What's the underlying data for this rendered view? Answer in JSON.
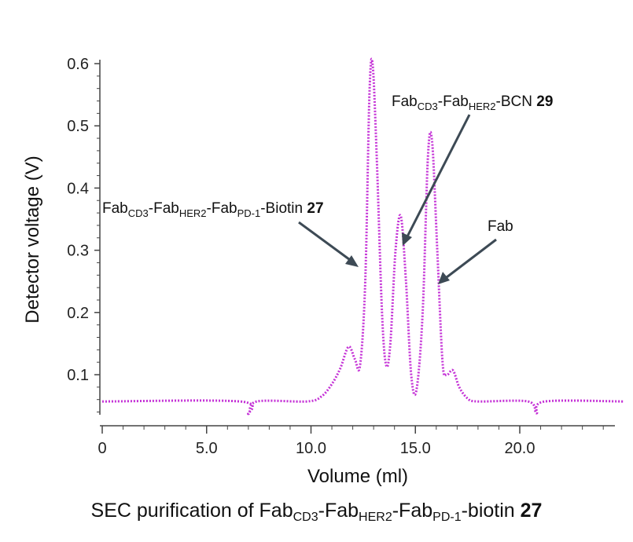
{
  "chart_data": {
    "type": "line",
    "title": "",
    "xlabel": "Volume (ml)",
    "ylabel": "Detector voltage (V)",
    "xlim": [
      0,
      25
    ],
    "ylim": [
      0.03,
      0.61
    ],
    "xticks": [
      0,
      5,
      10,
      15,
      20
    ],
    "xtick_labels": [
      "0",
      "5.0",
      "10.0",
      "15.0",
      "20.0"
    ],
    "yticks": [
      0.1,
      0.2,
      0.3,
      0.4,
      0.5,
      0.6
    ],
    "ytick_labels": [
      "0.1",
      "0.2",
      "0.3",
      "0.4",
      "0.5",
      "0.6"
    ],
    "grid": false,
    "series": [
      {
        "color": "#c431d6",
        "style": "dotted",
        "x": [
          0.0,
          6.6,
          7.0,
          7.4,
          9.8,
          10.5,
          11.0,
          11.4,
          11.8,
          12.1,
          12.35,
          12.6,
          12.8,
          12.95,
          13.15,
          13.4,
          13.6,
          13.8,
          14.05,
          14.3,
          14.55,
          14.8,
          15.05,
          15.35,
          15.6,
          15.8,
          16.05,
          16.3,
          16.5,
          16.8,
          17.1,
          17.5,
          18.0,
          20.4,
          20.8,
          21.2,
          25.0
        ],
        "y": [
          0.057,
          0.057,
          0.037,
          0.057,
          0.057,
          0.065,
          0.085,
          0.11,
          0.145,
          0.125,
          0.115,
          0.25,
          0.55,
          0.6,
          0.45,
          0.2,
          0.115,
          0.15,
          0.3,
          0.355,
          0.25,
          0.1,
          0.075,
          0.2,
          0.45,
          0.475,
          0.3,
          0.12,
          0.1,
          0.107,
          0.08,
          0.062,
          0.057,
          0.057,
          0.038,
          0.057,
          0.057
        ]
      }
    ],
    "annotations": [
      {
        "id": "p27",
        "prefix": "Fab",
        "sub1": "CD3",
        "mid1": "-Fab",
        "sub2": "HER2",
        "mid2": "-Fab",
        "sub3": "PD-1",
        "suffix": "-Biotin ",
        "number": "27",
        "target_x": 12.75,
        "target_y": 0.27
      },
      {
        "id": "p29",
        "prefix": "Fab",
        "sub1": "CD3",
        "mid1": "-Fab",
        "sub2": "HER2",
        "suffix": "-BCN ",
        "number": "29",
        "target_x": 14.65,
        "target_y": 0.31
      },
      {
        "id": "fab",
        "label": "Fab",
        "target_x": 16.05,
        "target_y": 0.25
      }
    ],
    "caption": {
      "text1": "SEC purification of Fab",
      "sub1": "CD3",
      "text2": "-Fab",
      "sub2": "HER2",
      "text3": "-Fab",
      "sub3": "PD-1",
      "text4": "-biotin ",
      "number": "27"
    }
  }
}
